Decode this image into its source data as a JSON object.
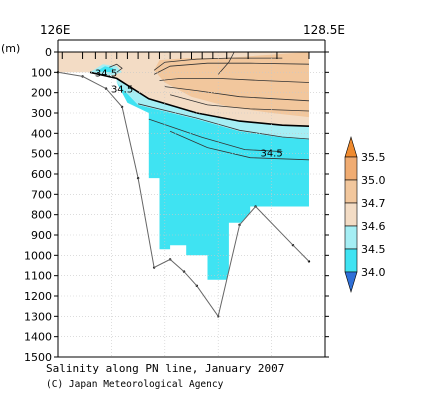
{
  "chart_data": {
    "type": "heatmap",
    "title": "Salinity along PN line, January 2007",
    "credit": "(C) Japan Meteorological Agency",
    "x_axis": {
      "left_label": "126E",
      "right_label": "128.5E",
      "range": [
        126,
        128.5
      ]
    },
    "y_axis": {
      "unit_label": "(m)",
      "range": [
        0,
        1500
      ],
      "ticks": [
        0,
        100,
        200,
        300,
        400,
        500,
        600,
        700,
        800,
        900,
        1000,
        1100,
        1200,
        1300,
        1400,
        1500
      ]
    },
    "stations_lon": [
      126.04,
      126.23,
      126.35,
      126.45,
      126.55,
      126.65,
      126.75,
      126.85,
      126.95,
      127.05,
      127.15,
      127.25,
      127.35,
      127.45,
      127.58,
      127.78,
      128.05,
      128.35
    ],
    "bottom_profile": [
      {
        "lon": 126.0,
        "depth": 100
      },
      {
        "lon": 126.23,
        "depth": 120
      },
      {
        "lon": 126.45,
        "depth": 180
      },
      {
        "lon": 126.6,
        "depth": 270
      },
      {
        "lon": 126.75,
        "depth": 620
      },
      {
        "lon": 126.9,
        "depth": 1060
      },
      {
        "lon": 127.05,
        "depth": 1020
      },
      {
        "lon": 127.18,
        "depth": 1080
      },
      {
        "lon": 127.3,
        "depth": 1150
      },
      {
        "lon": 127.5,
        "depth": 1300
      },
      {
        "lon": 127.7,
        "depth": 850
      },
      {
        "lon": 127.85,
        "depth": 760
      },
      {
        "lon": 128.2,
        "depth": 950
      },
      {
        "lon": 128.35,
        "depth": 1030
      }
    ],
    "colorbar": {
      "levels": [
        "34.0",
        "34.5",
        "34.6",
        "34.7",
        "35.0",
        "35.5"
      ],
      "colors": [
        "#3fe3f2",
        "#a5eef4",
        "#f3dcc5",
        "#f2c79d",
        "#f0ac72"
      ],
      "min_arrow_color": "#2f6fd7",
      "max_arrow_color": "#ef8a2e"
    },
    "contour_labels": [
      {
        "text": "34.5",
        "lon": 126.45,
        "depth": 100
      },
      {
        "text": "34.5",
        "lon": 126.6,
        "depth": 180
      },
      {
        "text": "34.5",
        "lon": 128.0,
        "depth": 495
      }
    ]
  }
}
